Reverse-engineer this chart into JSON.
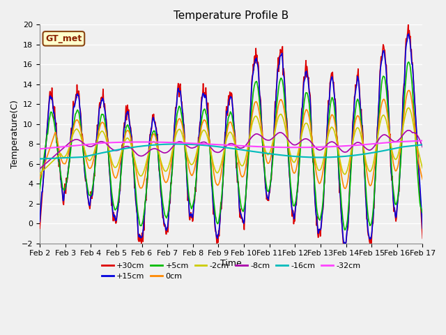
{
  "title": "Temperature Profile B",
  "xlabel": "Time",
  "ylabel": "Temperature(C)",
  "ylim": [
    -2,
    20
  ],
  "fig_bg": "#f0f0f0",
  "plot_bg": "#f0f0f0",
  "gt_met_label": "GT_met",
  "series": {
    "+30cm": {
      "color": "#dd0000",
      "lw": 1.2
    },
    "+15cm": {
      "color": "#0000dd",
      "lw": 1.2
    },
    "+5cm": {
      "color": "#00bb00",
      "lw": 1.2
    },
    "0cm": {
      "color": "#ff8800",
      "lw": 1.2
    },
    "-2cm": {
      "color": "#cccc00",
      "lw": 1.2
    },
    "-8cm": {
      "color": "#aa00aa",
      "lw": 1.2
    },
    "-16cm": {
      "color": "#00bbbb",
      "lw": 1.5
    },
    "-32cm": {
      "color": "#ff44ff",
      "lw": 1.5
    }
  },
  "legend_order": [
    "+30cm",
    "+15cm",
    "+5cm",
    "0cm",
    "-2cm",
    "-8cm",
    "-16cm",
    "-32cm"
  ],
  "xtick_labels": [
    "Feb 2",
    "Feb 3",
    "Feb 4",
    "Feb 5",
    "Feb 6",
    "Feb 7",
    "Feb 8",
    "Feb 9",
    "Feb 10",
    "Feb 11",
    "Feb 12",
    "Feb 13",
    "Feb 14",
    "Feb 15",
    "Feb 16",
    "Feb 17"
  ]
}
